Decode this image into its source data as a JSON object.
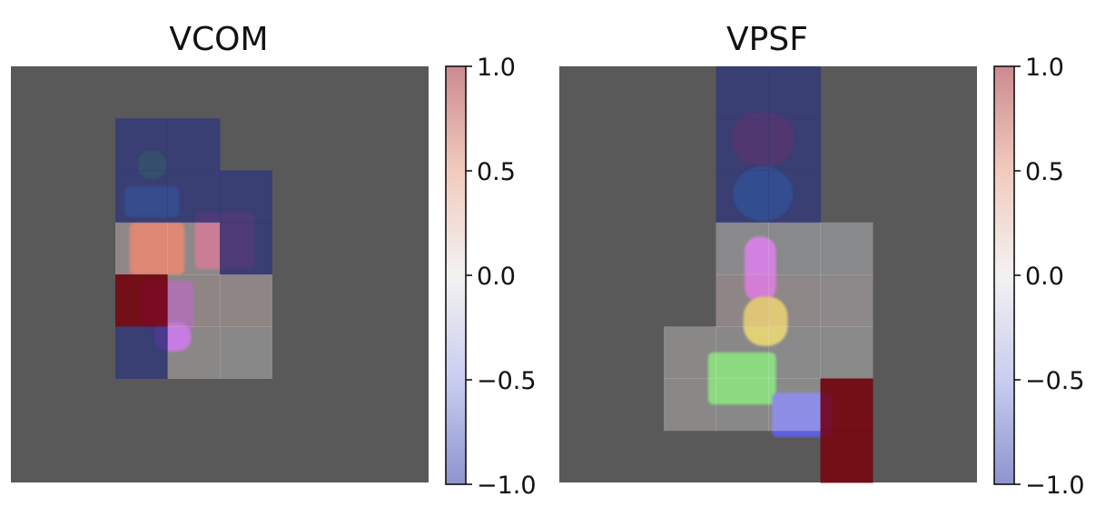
{
  "chart_data": [
    {
      "type": "heatmap",
      "title": "VCOM",
      "xlabel": "",
      "ylabel": "",
      "grid": false,
      "axes_visible": false,
      "background_color": "#595959",
      "colormap": "bwr-like (blue -> white -> red), translucent overlay",
      "colorbar": {
        "vmin": -1.0,
        "vmax": 1.0,
        "ticks": [
          1.0,
          0.5,
          0.0,
          -0.5,
          -1.0
        ],
        "tick_labels": [
          "1.0",
          "0.5",
          "0.0",
          "−0.5",
          "−1.0"
        ],
        "placement": "right"
      },
      "grid_size": [
        8,
        8
      ],
      "cells": [
        {
          "col": 2,
          "row": 1,
          "value": -0.92
        },
        {
          "col": 3,
          "row": 1,
          "value": -0.92
        },
        {
          "col": 2,
          "row": 2,
          "value": -0.92
        },
        {
          "col": 3,
          "row": 2,
          "value": -0.92
        },
        {
          "col": 4,
          "row": 2,
          "value": -0.92
        },
        {
          "col": 2,
          "row": 3,
          "value": 0.18
        },
        {
          "col": 3,
          "row": 3,
          "value": 0.12
        },
        {
          "col": 4,
          "row": 3,
          "value": -0.92
        },
        {
          "col": 2,
          "row": 4,
          "value": 1.0
        },
        {
          "col": 3,
          "row": 4,
          "value": 0.22
        },
        {
          "col": 4,
          "row": 4,
          "value": 0.22
        },
        {
          "col": 2,
          "row": 5,
          "value": -0.92
        },
        {
          "col": 3,
          "row": 5,
          "value": 0.06
        },
        {
          "col": 4,
          "row": 5,
          "value": 0.04
        }
      ],
      "objects": [
        {
          "shape": "cylinder",
          "color": "#4caa3c",
          "col": 2.7,
          "row": 1.9,
          "w": 0.55,
          "h": 0.55
        },
        {
          "shape": "cube",
          "color": "#4a9ad6",
          "col": 2.7,
          "row": 2.6,
          "w": 1.05,
          "h": 0.6
        },
        {
          "shape": "cube",
          "color": "#b84a6a",
          "col": 4.1,
          "row": 3.35,
          "w": 1.15,
          "h": 1.1
        },
        {
          "shape": "cube",
          "color": "#d85a3a",
          "col": 2.8,
          "row": 3.5,
          "w": 1.05,
          "h": 1.0
        },
        {
          "shape": "cube",
          "color": "#8a3aa0",
          "col": 3.0,
          "row": 4.6,
          "w": 1.0,
          "h": 0.95
        },
        {
          "shape": "cylinder",
          "color": "#b04adc",
          "col": 3.1,
          "row": 5.2,
          "w": 0.7,
          "h": 0.55
        }
      ]
    },
    {
      "type": "heatmap",
      "title": "VPSF",
      "xlabel": "",
      "ylabel": "",
      "grid": false,
      "axes_visible": false,
      "background_color": "#595959",
      "colormap": "bwr-like (blue -> white -> red), translucent overlay",
      "colorbar": {
        "vmin": -1.0,
        "vmax": 1.0,
        "ticks": [
          1.0,
          0.5,
          0.0,
          -0.5,
          -1.0
        ],
        "tick_labels": [
          "1.0",
          "0.5",
          "0.0",
          "−0.5",
          "−1.0"
        ],
        "placement": "right"
      },
      "grid_size": [
        8,
        8
      ],
      "cells": [
        {
          "col": 3,
          "row": 0,
          "value": -0.92
        },
        {
          "col": 4,
          "row": 0,
          "value": -0.92
        },
        {
          "col": 3,
          "row": 1,
          "value": -0.92
        },
        {
          "col": 4,
          "row": 1,
          "value": -0.92
        },
        {
          "col": 3,
          "row": 2,
          "value": -0.92
        },
        {
          "col": 4,
          "row": 2,
          "value": -0.92
        },
        {
          "col": 3,
          "row": 3,
          "value": -0.1
        },
        {
          "col": 4,
          "row": 3,
          "value": -0.08
        },
        {
          "col": 5,
          "row": 3,
          "value": -0.08
        },
        {
          "col": 3,
          "row": 4,
          "value": 0.2
        },
        {
          "col": 4,
          "row": 4,
          "value": 0.15
        },
        {
          "col": 5,
          "row": 4,
          "value": 0.1
        },
        {
          "col": 2,
          "row": 5,
          "value": 0.06
        },
        {
          "col": 3,
          "row": 5,
          "value": 0.04
        },
        {
          "col": 4,
          "row": 5,
          "value": -0.05
        },
        {
          "col": 5,
          "row": 5,
          "value": -0.05
        },
        {
          "col": 2,
          "row": 6,
          "value": 0.06
        },
        {
          "col": 3,
          "row": 6,
          "value": 0.04
        },
        {
          "col": 4,
          "row": 6,
          "value": -0.05
        },
        {
          "col": 5,
          "row": 6,
          "value": 1.0
        },
        {
          "col": 5,
          "row": 7,
          "value": 1.0
        }
      ],
      "objects": [
        {
          "shape": "cylinder",
          "color": "#c8384e",
          "col": 3.9,
          "row": 1.4,
          "w": 1.2,
          "h": 1.0
        },
        {
          "shape": "sphere",
          "color": "#3ea6de",
          "col": 3.9,
          "row": 2.45,
          "w": 1.15,
          "h": 1.05
        },
        {
          "shape": "cylinder",
          "color": "#c84ed8",
          "col": 3.85,
          "row": 3.9,
          "w": 0.6,
          "h": 1.25
        },
        {
          "shape": "cylinder",
          "color": "#d8c040",
          "col": 3.95,
          "row": 4.9,
          "w": 0.85,
          "h": 0.95
        },
        {
          "shape": "cube",
          "color": "#5fd050",
          "col": 3.5,
          "row": 6.0,
          "w": 1.3,
          "h": 1.0
        },
        {
          "shape": "cube",
          "color": "#6060e0",
          "col": 4.65,
          "row": 6.7,
          "w": 1.15,
          "h": 0.85
        }
      ]
    }
  ]
}
